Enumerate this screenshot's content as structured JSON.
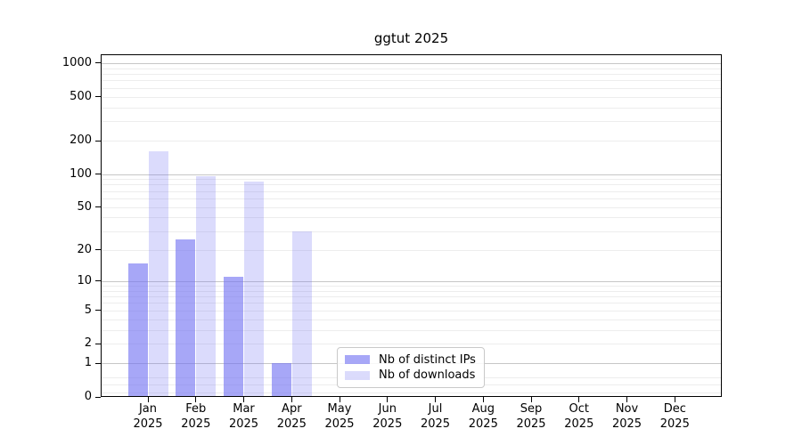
{
  "chart_data": {
    "type": "bar",
    "title": "ggtut 2025",
    "categories": [
      "Jan 2025",
      "Feb 2025",
      "Mar 2025",
      "Apr 2025",
      "May 2025",
      "Jun 2025",
      "Jul 2025",
      "Aug 2025",
      "Sep 2025",
      "Oct 2025",
      "Nov 2025",
      "Dec 2025"
    ],
    "series": [
      {
        "name": "Nb of distinct IPs",
        "color": "rgba(116,116,242,0.63)",
        "values": [
          15,
          25,
          11,
          1,
          0,
          0,
          0,
          0,
          0,
          0,
          0,
          0
        ]
      },
      {
        "name": "Nb of downloads",
        "color": "rgba(116,116,242,0.26)",
        "values": [
          160,
          95,
          85,
          30,
          0,
          0,
          0,
          0,
          0,
          0,
          0,
          0
        ]
      }
    ],
    "xlabel": "",
    "ylabel": "",
    "yscale": "log1p",
    "ylim": [
      0,
      1200
    ],
    "yticks": [
      0,
      1,
      2,
      5,
      10,
      20,
      50,
      100,
      200,
      500,
      1000
    ],
    "ytick_labels": [
      "0",
      "1",
      "2",
      "5",
      "10",
      "20",
      "50",
      "100",
      "200",
      "500",
      "1000"
    ],
    "grid": "horizontal",
    "legend_position": "bottom-center",
    "colors": {
      "bar_fill_base": "#7474f2",
      "grid_minor": "#ededed",
      "grid_major": "#c7c7c7",
      "axis": "#000000",
      "background": "#ffffff"
    }
  }
}
